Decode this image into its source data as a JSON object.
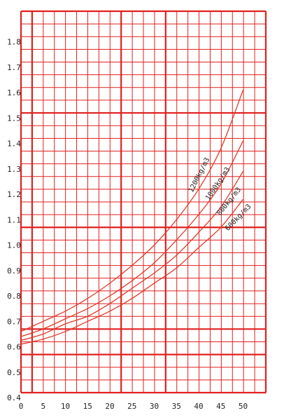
{
  "chart_data": {
    "type": "line",
    "title": "",
    "xlabel": "",
    "ylabel": "",
    "xlim": [
      0,
      54
    ],
    "ylim": [
      0.4,
      2.0
    ],
    "grid": true,
    "x_ticks": [
      {
        "value": 0,
        "label": "0"
      },
      {
        "value": 5,
        "label": "5"
      },
      {
        "value": 10,
        "label": "10"
      },
      {
        "value": 15,
        "label": "15"
      },
      {
        "value": 20,
        "label": "20"
      },
      {
        "value": 25,
        "label": "25"
      },
      {
        "value": 30,
        "label": "30"
      },
      {
        "value": 35,
        "label": "35"
      },
      {
        "value": 40,
        "label": "40"
      },
      {
        "value": 45,
        "label": "45"
      },
      {
        "value": 50,
        "label": "50"
      }
    ],
    "y_ticks": [
      {
        "value": 0.4,
        "label": "0.4"
      },
      {
        "value": 0.5,
        "label": "0.5"
      },
      {
        "value": 0.6,
        "label": "0.6"
      },
      {
        "value": 0.7,
        "label": "0.7"
      },
      {
        "value": 0.8,
        "label": "0.8"
      },
      {
        "value": 0.9,
        "label": "0.9"
      },
      {
        "value": 1.0,
        "label": "1.0"
      },
      {
        "value": 1.1,
        "label": "1.1"
      },
      {
        "value": 1.2,
        "label": "1.2"
      },
      {
        "value": 1.3,
        "label": "1.3"
      },
      {
        "value": 1.4,
        "label": "1.4"
      },
      {
        "value": 1.5,
        "label": "1.5"
      },
      {
        "value": 1.6,
        "label": "1.6"
      },
      {
        "value": 1.7,
        "label": "1.7"
      },
      {
        "value": 1.8,
        "label": "1.8"
      }
    ],
    "series": [
      {
        "name": "1200kg/m3",
        "x": [
          0,
          5,
          10,
          15,
          20,
          25,
          30,
          35,
          40,
          45,
          50
        ],
        "y": [
          0.66,
          0.7,
          0.74,
          0.79,
          0.85,
          0.92,
          1.0,
          1.1,
          1.22,
          1.38,
          1.61
        ]
      },
      {
        "name": "1000kg/m3",
        "x": [
          0,
          5,
          10,
          15,
          20,
          25,
          30,
          35,
          40,
          45,
          50
        ],
        "y": [
          0.64,
          0.67,
          0.71,
          0.75,
          0.8,
          0.86,
          0.93,
          1.02,
          1.12,
          1.24,
          1.41
        ]
      },
      {
        "name": "800kg/m3",
        "x": [
          0,
          5,
          10,
          15,
          20,
          25,
          30,
          35,
          40,
          45,
          50
        ],
        "y": [
          0.625,
          0.65,
          0.69,
          0.72,
          0.77,
          0.83,
          0.89,
          0.96,
          1.05,
          1.15,
          1.29
        ]
      },
      {
        "name": "600kg/m3",
        "x": [
          0,
          5,
          10,
          15,
          20,
          25,
          30,
          35,
          40,
          45,
          50
        ],
        "y": [
          0.61,
          0.63,
          0.66,
          0.7,
          0.74,
          0.79,
          0.85,
          0.91,
          0.99,
          1.07,
          1.18
        ]
      }
    ]
  },
  "colors": {
    "grid": "#e0211f",
    "curves": [
      "#e03a2a",
      "#e03a2a",
      "#e03a2a",
      "#e03a2a"
    ],
    "background": "#ffffff",
    "text": "#222222"
  }
}
